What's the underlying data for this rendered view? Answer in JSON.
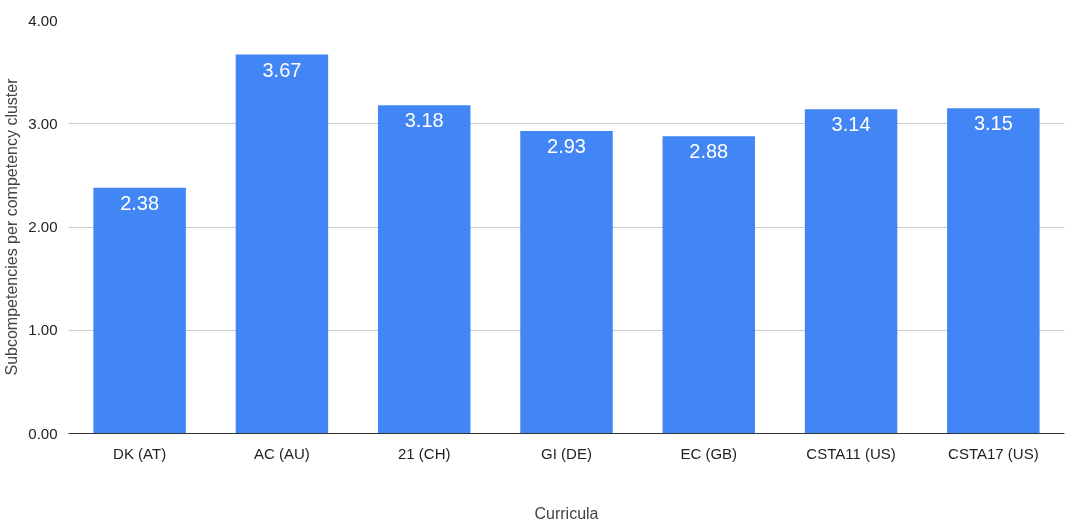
{
  "chart_data": {
    "type": "bar",
    "xlabel": "Curricula",
    "ylabel": "Subcompetencies per competency cluster",
    "categories": [
      "DK (AT)",
      "AC (AU)",
      "21 (CH)",
      "GI (DE)",
      "EC (GB)",
      "CSTA11 (US)",
      "CSTA17 (US)"
    ],
    "values": [
      2.38,
      3.67,
      3.18,
      2.93,
      2.88,
      3.14,
      3.15
    ],
    "color": "#4285f4",
    "ylim": [
      0,
      4
    ],
    "yticks": [
      {
        "value": 0,
        "label": "0.00"
      },
      {
        "value": 1,
        "label": "1.00"
      },
      {
        "value": 2,
        "label": "2.00"
      },
      {
        "value": 3,
        "label": "3.00"
      },
      {
        "value": 4,
        "label": "4.00"
      }
    ],
    "grid": "y",
    "data_labels": true
  }
}
